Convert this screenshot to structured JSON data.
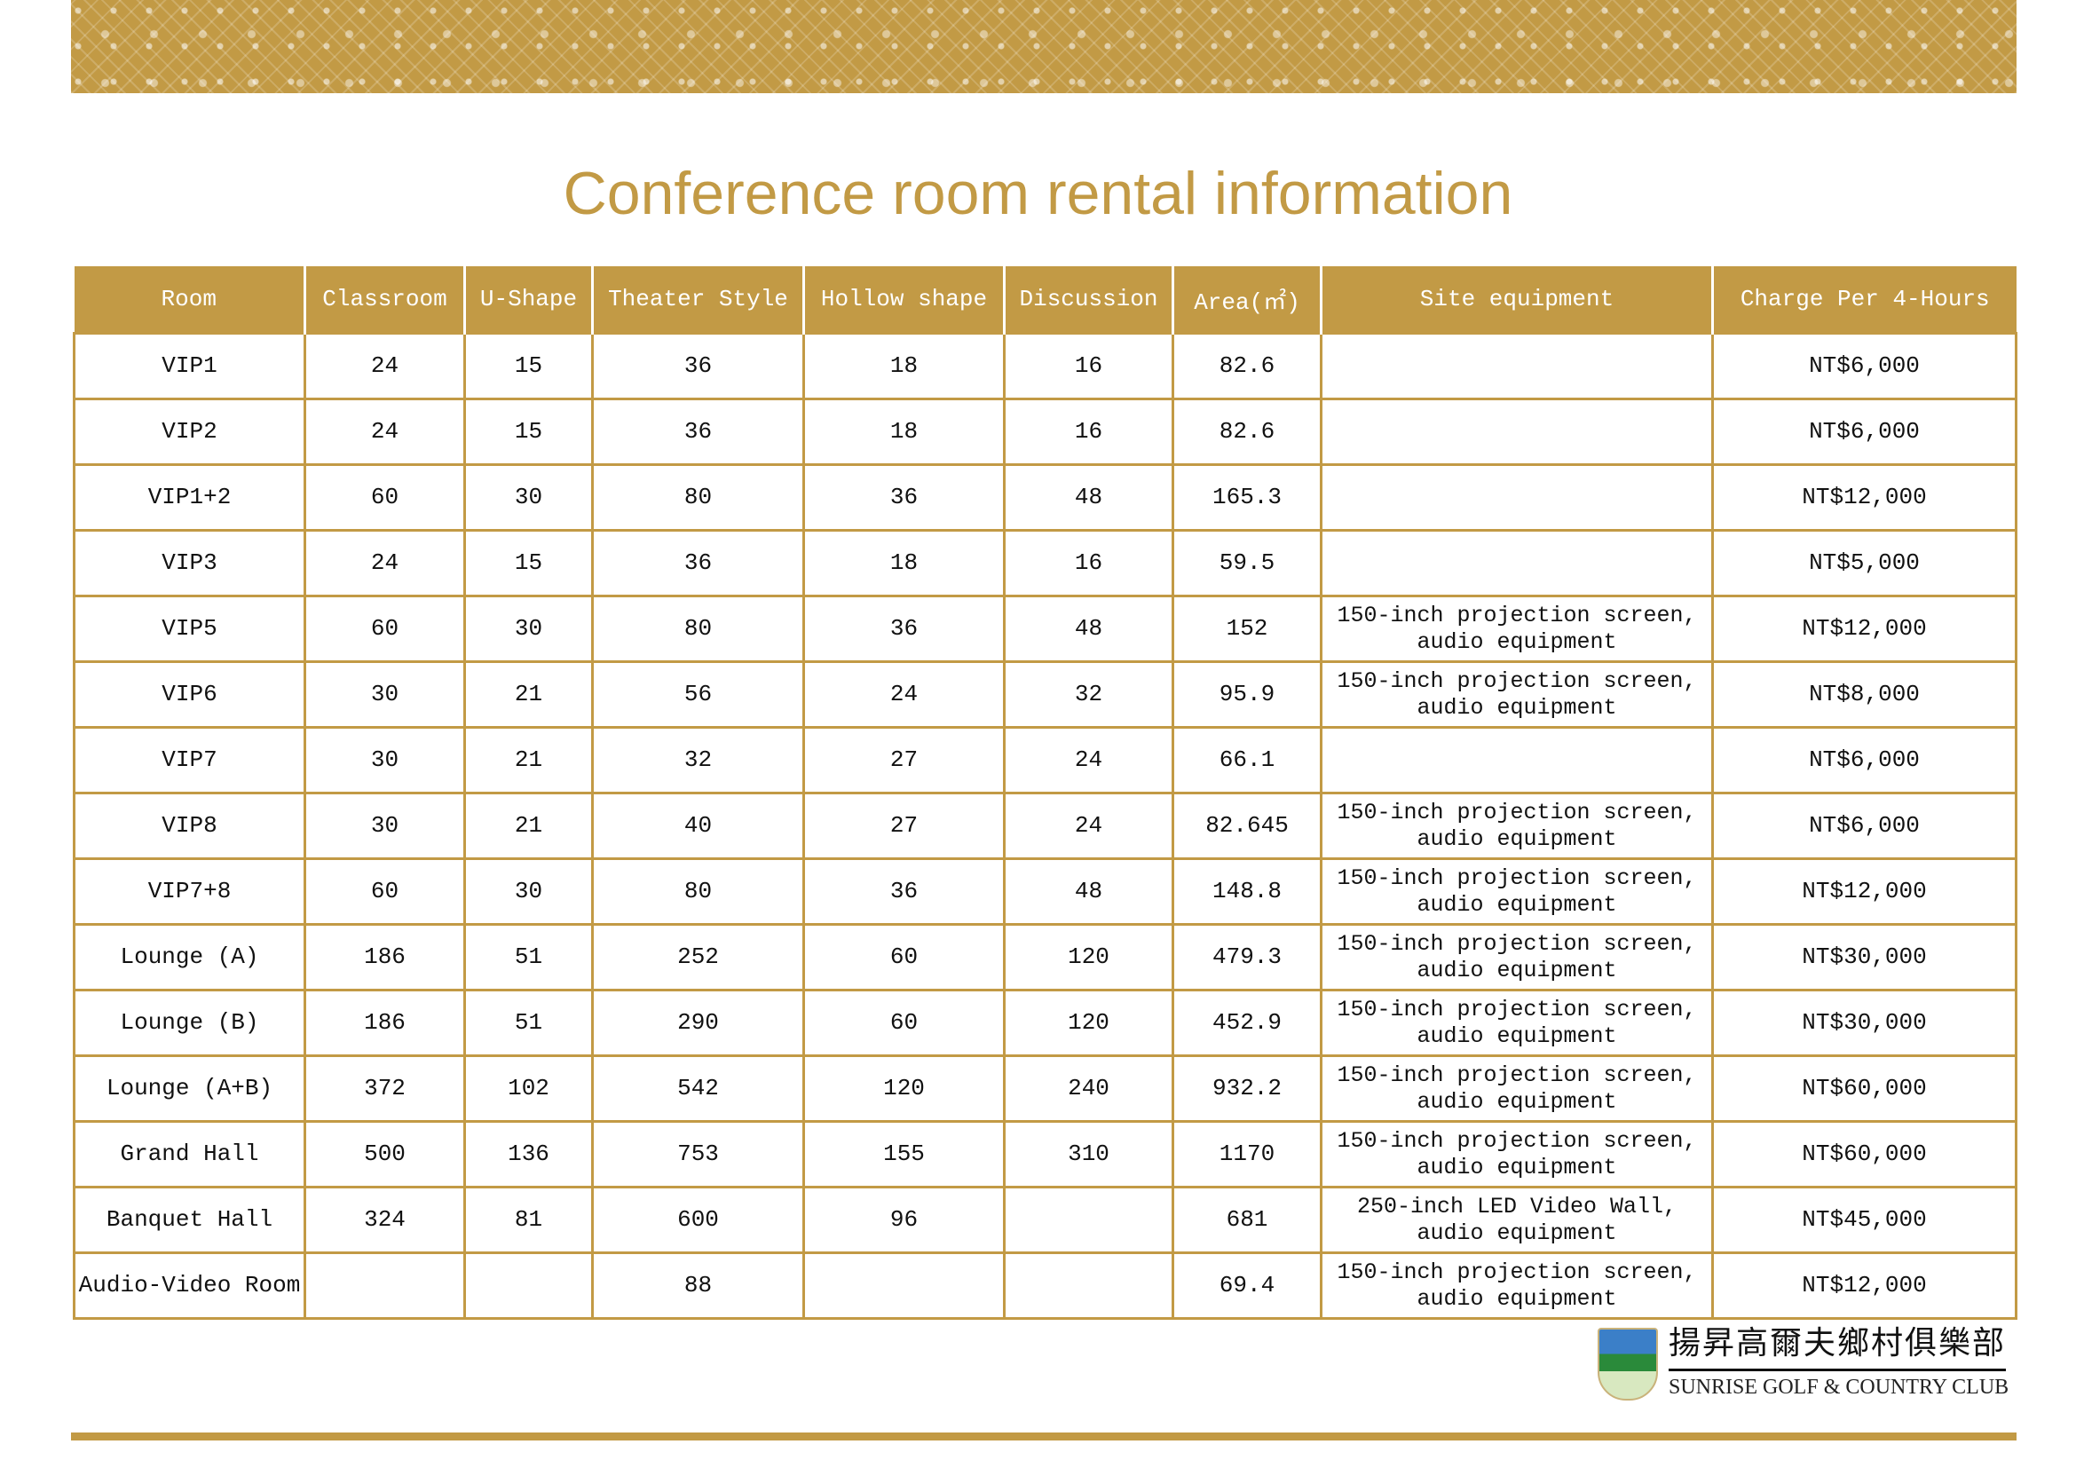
{
  "title": "Conference room rental information",
  "table": {
    "headers": [
      "Room",
      "Classroom",
      "U-Shape",
      "Theater Style",
      "Hollow shape",
      "Discussion",
      "Area(㎡)",
      "Site equipment",
      "Charge Per 4-Hours"
    ],
    "rows": [
      [
        "VIP1",
        "24",
        "15",
        "36",
        "18",
        "16",
        "82.6",
        "",
        "NT$6,000"
      ],
      [
        "VIP2",
        "24",
        "15",
        "36",
        "18",
        "16",
        "82.6",
        "",
        "NT$6,000"
      ],
      [
        "VIP1+2",
        "60",
        "30",
        "80",
        "36",
        "48",
        "165.3",
        "",
        "NT$12,000"
      ],
      [
        "VIP3",
        "24",
        "15",
        "36",
        "18",
        "16",
        "59.5",
        "",
        "NT$5,000"
      ],
      [
        "VIP5",
        "60",
        "30",
        "80",
        "36",
        "48",
        "152",
        "150-inch projection screen,\naudio equipment",
        "NT$12,000"
      ],
      [
        "VIP6",
        "30",
        "21",
        "56",
        "24",
        "32",
        "95.9",
        "150-inch projection screen,\naudio equipment",
        "NT$8,000"
      ],
      [
        "VIP7",
        "30",
        "21",
        "32",
        "27",
        "24",
        "66.1",
        "",
        "NT$6,000"
      ],
      [
        "VIP8",
        "30",
        "21",
        "40",
        "27",
        "24",
        "82.645",
        "150-inch projection screen,\naudio equipment",
        "NT$6,000"
      ],
      [
        "VIP7+8",
        "60",
        "30",
        "80",
        "36",
        "48",
        "148.8",
        "150-inch projection screen,\naudio equipment",
        "NT$12,000"
      ],
      [
        "Lounge (A)",
        "186",
        "51",
        "252",
        "60",
        "120",
        "479.3",
        "150-inch projection screen,\naudio equipment",
        "NT$30,000"
      ],
      [
        "Lounge (B)",
        "186",
        "51",
        "290",
        "60",
        "120",
        "452.9",
        "150-inch projection screen,\naudio equipment",
        "NT$30,000"
      ],
      [
        "Lounge (A+B)",
        "372",
        "102",
        "542",
        "120",
        "240",
        "932.2",
        "150-inch projection screen,\naudio equipment",
        "NT$60,000"
      ],
      [
        "Grand Hall",
        "500",
        "136",
        "753",
        "155",
        "310",
        "1170",
        "150-inch projection screen,\naudio equipment",
        "NT$60,000"
      ],
      [
        "Banquet Hall",
        "324",
        "81",
        "600",
        "96",
        "",
        "681",
        "250-inch LED Video Wall,\naudio equipment",
        "NT$45,000"
      ],
      [
        "Audio-Video Room",
        "",
        "",
        "88",
        "",
        "",
        "69.4",
        "150-inch projection screen,\naudio equipment",
        "NT$12,000"
      ]
    ]
  },
  "logo": {
    "chinese": "揚昇高爾夫鄉村俱樂部",
    "english": "SUNRISE GOLF & COUNTRY CLUB"
  },
  "colors": {
    "accent": "#c29a45"
  }
}
